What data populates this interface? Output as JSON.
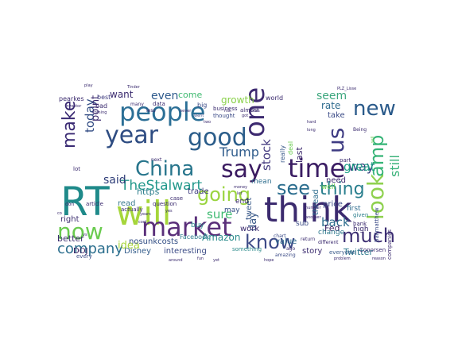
{
  "wordcloud": {
    "words": [
      {
        "text": "RT",
        "color": "#1f8a8a"
      },
      {
        "text": "think",
        "color": "#3b2a6e"
      },
      {
        "text": "will",
        "color": "#a6d63b"
      },
      {
        "text": "people",
        "color": "#2b6f96"
      },
      {
        "text": "market",
        "color": "#5a2f7a"
      },
      {
        "text": "year",
        "color": "#2e4c82"
      },
      {
        "text": "good",
        "color": "#2b5d8a"
      },
      {
        "text": "time",
        "color": "#3a1c63"
      },
      {
        "text": "one",
        "color": "#3d2a70"
      },
      {
        "text": "new",
        "color": "#2a5a8a"
      },
      {
        "text": "us",
        "color": "#3e3b82"
      },
      {
        "text": "say",
        "color": "#3a1a60"
      },
      {
        "text": "China",
        "color": "#27758c"
      },
      {
        "text": "now",
        "color": "#6acb4f"
      },
      {
        "text": "know",
        "color": "#3d4a87"
      },
      {
        "text": "much",
        "color": "#3d2f73"
      },
      {
        "text": "look",
        "color": "#8fd14f"
      },
      {
        "text": "going",
        "color": "#9ad43f"
      },
      {
        "text": "amp",
        "color": "#36b477"
      },
      {
        "text": "see",
        "color": "#2b6d8e"
      },
      {
        "text": "thing",
        "color": "#2a7f8e"
      },
      {
        "text": "make",
        "color": "#3a2a73"
      },
      {
        "text": "company",
        "color": "#2c6f8e"
      },
      {
        "text": "TheStalwart",
        "color": "#22988b"
      },
      {
        "text": "Trump",
        "color": "#2f5c8c"
      },
      {
        "text": "said",
        "color": "#2e3d78"
      },
      {
        "text": "sure",
        "color": "#3fba72"
      },
      {
        "text": "today",
        "color": "#2f4a82"
      },
      {
        "text": "still",
        "color": "#3bb27a"
      },
      {
        "text": "way",
        "color": "#2e3a7a"
      },
      {
        "text": "back",
        "color": "#2f6e8e"
      },
      {
        "text": "seem",
        "color": "#3da77e"
      },
      {
        "text": "great",
        "color": "#1fa187"
      },
      {
        "text": "stock",
        "color": "#463c80"
      },
      {
        "text": "even",
        "color": "#2e5a8c"
      },
      {
        "text": "last",
        "color": "#3d2a6e"
      },
      {
        "text": "day",
        "color": "#3a5a8a"
      },
      {
        "text": "rate",
        "color": "#2e6b8e"
      },
      {
        "text": "Twitter",
        "color": "#2f7a8e"
      },
      {
        "text": "Amazon",
        "color": "#2c8c8c"
      },
      {
        "text": "Disney",
        "color": "#355e8c"
      },
      {
        "text": "interesting",
        "color": "#3b4b86"
      },
      {
        "text": "Fed",
        "color": "#3a1d60"
      },
      {
        "text": "thread",
        "color": "#2e6d8e"
      },
      {
        "text": "point",
        "color": "#3b2a6e"
      },
      {
        "text": "better",
        "color": "#3a2c6e"
      },
      {
        "text": "https",
        "color": "#2e7f8e"
      },
      {
        "text": "trade",
        "color": "#3d3a7e"
      },
      {
        "text": "right",
        "color": "#3d2e70"
      },
      {
        "text": "want",
        "color": "#3a2a6e"
      },
      {
        "text": "come",
        "color": "#3fba70"
      },
      {
        "text": "growth",
        "color": "#8ad14a"
      },
      {
        "text": "value",
        "color": "#2f6b8e"
      },
      {
        "text": "price",
        "color": "#3a4b86"
      },
      {
        "text": "story",
        "color": "#3a2a6e"
      },
      {
        "text": "idea",
        "color": "#a8d63a"
      },
      {
        "text": "read",
        "color": "#3a7a8e"
      },
      {
        "text": "nosunkcosts",
        "color": "#2e4a82"
      },
      {
        "text": "DOJ",
        "color": "#3a1d60"
      },
      {
        "text": "sub",
        "color": "#3a4b86"
      },
      {
        "text": "change",
        "color": "#2f7a8e"
      },
      {
        "text": "mean",
        "color": "#2f6e8e"
      },
      {
        "text": "need",
        "color": "#3d2a6e"
      },
      {
        "text": "well",
        "color": "#6acb4f"
      },
      {
        "text": "first",
        "color": "#2e6b8e"
      },
      {
        "text": "take",
        "color": "#3a4a86"
      },
      {
        "text": "high",
        "color": "#3a2a6e"
      },
      {
        "text": "tweet",
        "color": "#3a5a8a"
      },
      {
        "text": "work",
        "color": "#3a2a6e"
      },
      {
        "text": "end",
        "color": "#3a2a6e"
      },
      {
        "text": "may",
        "color": "#2f4a82"
      },
      {
        "text": "Facebook",
        "color": "#2f7a8e"
      },
      {
        "text": "buy",
        "color": "#2e8c8c"
      },
      {
        "text": "pearkes",
        "color": "#3a2a6e"
      },
      {
        "text": "best",
        "color": "#3d3a7e"
      },
      {
        "text": "lot",
        "color": "#3a2a6e"
      },
      {
        "text": "bad",
        "color": "#3a2a6e"
      },
      {
        "text": "world",
        "color": "#3a2a6e"
      },
      {
        "text": "big",
        "color": "#3a4a86"
      },
      {
        "text": "really",
        "color": "#3a5a8a"
      },
      {
        "text": "deal",
        "color": "#6acb4f"
      },
      {
        "text": "companies",
        "color": "#3a2a6e"
      },
      {
        "text": "ballmatthew",
        "color": "#3a4a86"
      },
      {
        "text": "Conorsen",
        "color": "#3a2a6e"
      },
      {
        "text": "everyone",
        "color": "#3a5a8a"
      },
      {
        "text": "bank",
        "color": "#3a2a6e"
      },
      {
        "text": "given",
        "color": "#2e7f8e"
      },
      {
        "text": "part",
        "color": "#3a2a6e"
      },
      {
        "text": "data",
        "color": "#3a2a6e"
      },
      {
        "text": "business",
        "color": "#3a2a6e"
      },
      {
        "text": "thought",
        "color": "#3a4a86"
      },
      {
        "text": "something",
        "color": "#2e8c8c"
      },
      {
        "text": "article",
        "color": "#3a2a6e"
      },
      {
        "text": "actually",
        "color": "#3a2a6e"
      },
      {
        "text": "every",
        "color": "#3a4a86"
      },
      {
        "text": "believe",
        "color": "#3a5a8a"
      },
      {
        "text": "question",
        "color": "#3a2a6e"
      },
      {
        "text": "case",
        "color": "#3a2a6e"
      },
      {
        "text": "don",
        "color": "#3a2a6e"
      },
      {
        "text": "return",
        "color": "#3a2a6e"
      },
      {
        "text": "chart",
        "color": "#3a4a86"
      },
      {
        "text": "amazing",
        "color": "#3a4a86"
      },
      {
        "text": "different",
        "color": "#3a2a6e"
      },
      {
        "text": "almost",
        "color": "#3a2a6e"
      },
      {
        "text": "co",
        "color": "#3a2a6e"
      },
      {
        "text": "vs",
        "color": "#3a2a6e"
      },
      {
        "text": "President",
        "color": "#3a2a6e"
      },
      {
        "text": "Tinder",
        "color": "#3a2a6e"
      },
      {
        "text": "another",
        "color": "#3a2a6e"
      },
      {
        "text": "number",
        "color": "#3a2a6e"
      },
      {
        "text": "went",
        "color": "#3a4a86"
      },
      {
        "text": "two",
        "color": "#3a2a6e"
      },
      {
        "text": "got",
        "color": "#3a2a6e"
      },
      {
        "text": "never",
        "color": "#3a2a6e"
      },
      {
        "text": "many",
        "color": "#3a2a6e"
      },
      {
        "text": "less",
        "color": "#3a2a6e"
      },
      {
        "text": "ago",
        "color": "#3a2a6e"
      },
      {
        "text": "next",
        "color": "#3a2a6e"
      },
      {
        "text": "PLZ_Lisse",
        "color": "#3a2a6e"
      },
      {
        "text": "Being",
        "color": "#3a2a6e"
      },
      {
        "text": "sell",
        "color": "#6acb4f"
      },
      {
        "text": "hard",
        "color": "#3a2a6e"
      },
      {
        "text": "long",
        "color": "#3a2a6e"
      },
      {
        "text": "play",
        "color": "#3a2a6e"
      },
      {
        "text": "investor",
        "color": "#3a2a6e"
      },
      {
        "text": "coming",
        "color": "#3a2a6e"
      },
      {
        "text": "years",
        "color": "#3a2a6e"
      },
      {
        "text": "cool",
        "color": "#3a2a6e"
      },
      {
        "text": "yes",
        "color": "#3a2a6e"
      },
      {
        "text": "risk",
        "color": "#3a2a6e"
      },
      {
        "text": "rates",
        "color": "#3a2a6e"
      },
      {
        "text": "money",
        "color": "#3a2a6e"
      },
      {
        "text": "let",
        "color": "#3a2a6e"
      },
      {
        "text": "problem",
        "color": "#3a2a6e"
      },
      {
        "text": "reason",
        "color": "#3a2a6e"
      },
      {
        "text": "around",
        "color": "#3a2a6e"
      },
      {
        "text": "fun",
        "color": "#3a2a6e"
      },
      {
        "text": "yet",
        "color": "#3a2a6e"
      },
      {
        "text": "hope",
        "color": "#3a2a6e"
      },
      {
        "text": "tax",
        "color": "#3a2a6e"
      },
      {
        "text": "little",
        "color": "#3a2a6e"
      }
    ]
  }
}
